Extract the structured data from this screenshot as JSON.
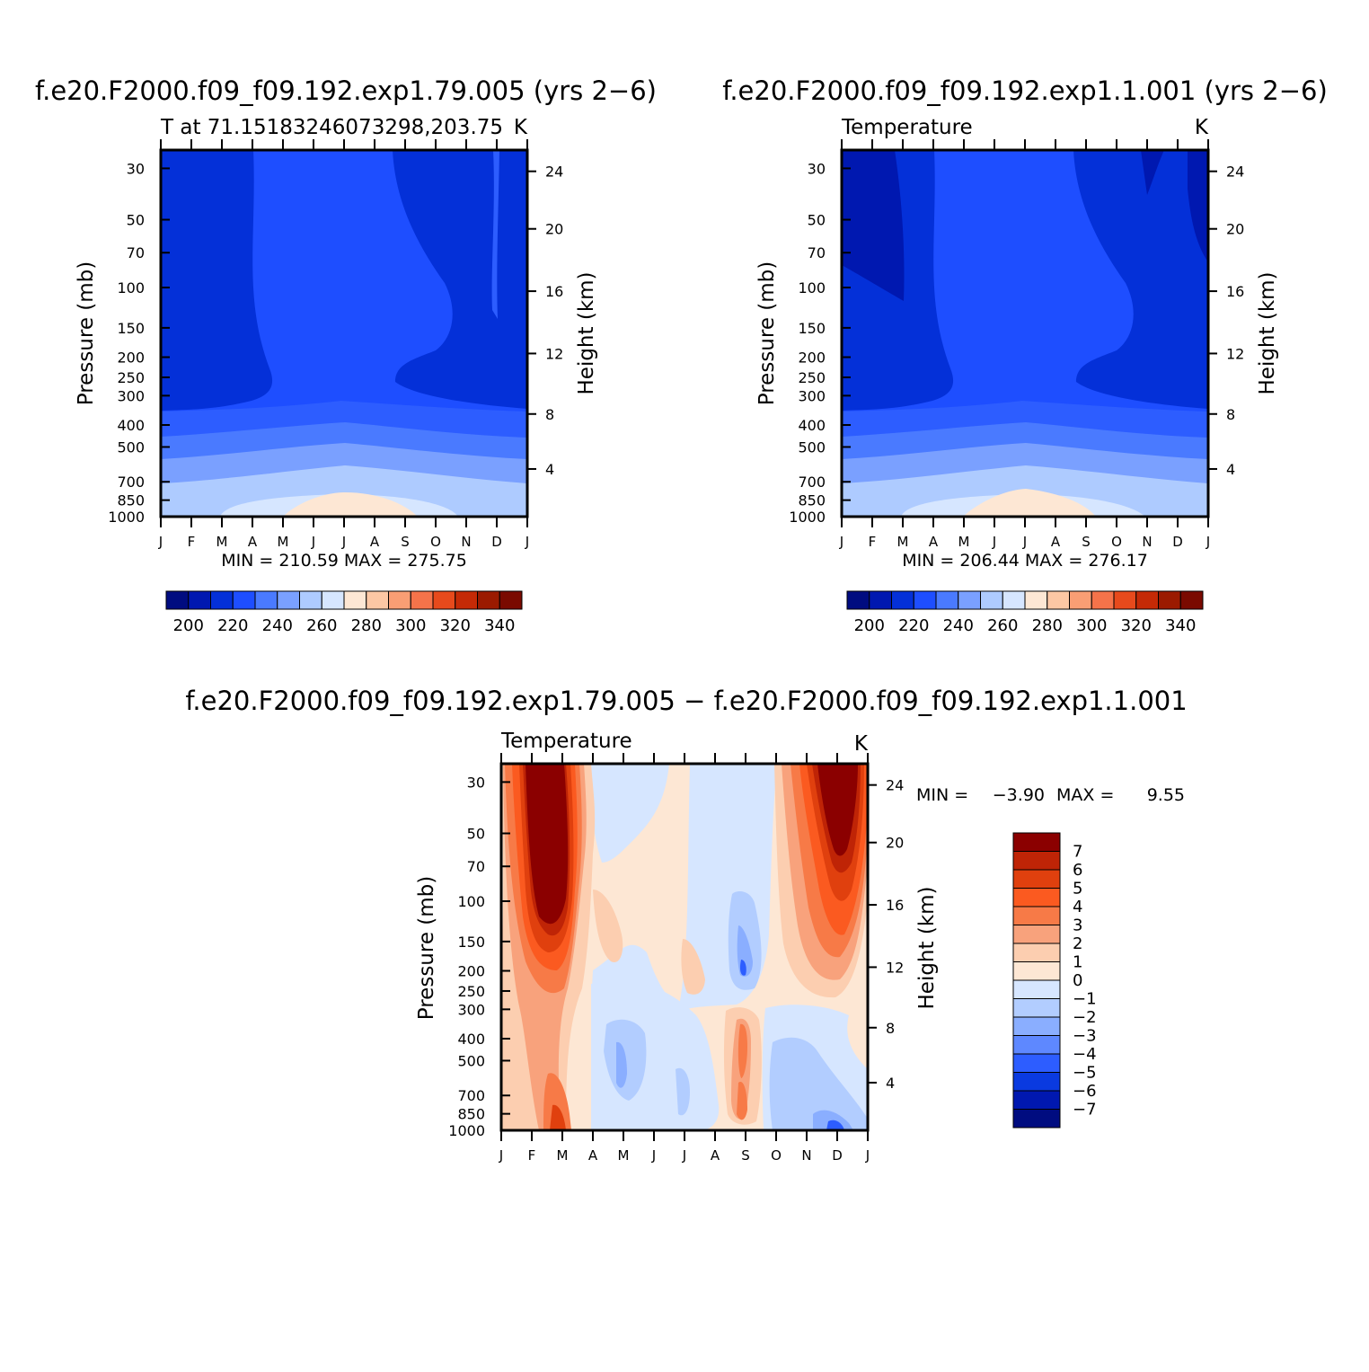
{
  "chart_data": [
    {
      "type": "contour",
      "title": "f.e20.F2000.f09_f09.192.exp1.79.005 (yrs 2−6)",
      "subtitle_left": "T at 71.15183246073298,203.75",
      "subtitle_right": "K",
      "xlabel": "",
      "ylabel": "Pressure (mb)",
      "ylabel_right": "Height (km)",
      "x_ticks": [
        "J",
        "F",
        "M",
        "A",
        "M",
        "J",
        "J",
        "A",
        "S",
        "O",
        "N",
        "D",
        "J"
      ],
      "y_ticks": [
        "30",
        "50",
        "70",
        "100",
        "150",
        "200",
        "250",
        "300",
        "400",
        "500",
        "700",
        "850",
        "1000"
      ],
      "y_ticks_right": [
        "24",
        "20",
        "16",
        "12",
        "8",
        "4"
      ],
      "stats_text": "MIN = 210.59  MAX = 275.75",
      "colorbar": {
        "orientation": "horizontal",
        "labels": [
          "200",
          "220",
          "240",
          "260",
          "280",
          "300",
          "320",
          "340"
        ],
        "colors": [
          "#000c80",
          "#0018b0",
          "#0430d8",
          "#1e4eff",
          "#4a7aff",
          "#7aa0ff",
          "#aecbff",
          "#d6e6ff",
          "#fde7d4",
          "#fcc7a4",
          "#f99e74",
          "#f5734a",
          "#e74a1c",
          "#c52a06",
          "#9b1a00",
          "#7a0a00"
        ]
      },
      "bands": [
        {
          "label": "210-220",
          "color": "#0430d8"
        },
        {
          "label": "220-230",
          "color": "#1e4eff"
        },
        {
          "label": "230-240",
          "color": "#2d5dff"
        },
        {
          "label": "240-250",
          "color": "#4a7aff"
        },
        {
          "label": "250-260",
          "color": "#7aa0ff"
        },
        {
          "label": "260-270",
          "color": "#aecbff"
        },
        {
          "label": "270-280",
          "color": "#d6e6ff"
        },
        {
          "label": "280-290",
          "color": "#fde7d4"
        }
      ]
    },
    {
      "type": "contour",
      "title": "f.e20.F2000.f09_f09.192.exp1.1.001 (yrs 2−6)",
      "subtitle_left": "Temperature",
      "subtitle_right": "K",
      "xlabel": "",
      "ylabel": "Pressure (mb)",
      "ylabel_right": "Height (km)",
      "x_ticks": [
        "J",
        "F",
        "M",
        "A",
        "M",
        "J",
        "J",
        "A",
        "S",
        "O",
        "N",
        "D",
        "J"
      ],
      "y_ticks": [
        "30",
        "50",
        "70",
        "100",
        "150",
        "200",
        "250",
        "300",
        "400",
        "500",
        "700",
        "850",
        "1000"
      ],
      "y_ticks_right": [
        "24",
        "20",
        "16",
        "12",
        "8",
        "4"
      ],
      "stats_text": "MIN = 206.44  MAX = 276.17",
      "colorbar": {
        "orientation": "horizontal",
        "labels": [
          "200",
          "220",
          "240",
          "260",
          "280",
          "300",
          "320",
          "340"
        ],
        "colors": [
          "#000c80",
          "#0018b0",
          "#0430d8",
          "#1e4eff",
          "#4a7aff",
          "#7aa0ff",
          "#aecbff",
          "#d6e6ff",
          "#fde7d4",
          "#fcc7a4",
          "#f99e74",
          "#f5734a",
          "#e74a1c",
          "#c52a06",
          "#9b1a00",
          "#7a0a00"
        ]
      }
    },
    {
      "type": "contour",
      "title": "f.e20.F2000.f09_f09.192.exp1.79.005 − f.e20.F2000.f09_f09.192.exp1.1.001",
      "subtitle_left": "Temperature",
      "subtitle_right": "K",
      "xlabel": "",
      "ylabel": "Pressure (mb)",
      "ylabel_right": "Height (km)",
      "x_ticks": [
        "J",
        "F",
        "M",
        "A",
        "M",
        "J",
        "J",
        "A",
        "S",
        "O",
        "N",
        "D",
        "J"
      ],
      "y_ticks": [
        "30",
        "50",
        "70",
        "100",
        "150",
        "200",
        "250",
        "300",
        "400",
        "500",
        "700",
        "850",
        "1000"
      ],
      "y_ticks_right": [
        "24",
        "20",
        "16",
        "12",
        "8",
        "4"
      ],
      "stats": {
        "min_label": "MIN =",
        "min_value": "−3.90",
        "max_label": "MAX =",
        "max_value": "9.55"
      },
      "colorbar": {
        "orientation": "vertical",
        "labels": [
          "7",
          "6",
          "5",
          "4",
          "3",
          "2",
          "1",
          "0",
          "−1",
          "−2",
          "−3",
          "−4",
          "−5",
          "−6",
          "−7"
        ],
        "colors": [
          "#8b0000",
          "#bf2406",
          "#e0400e",
          "#fb5a20",
          "#f77a47",
          "#f8a27c",
          "#fcceb0",
          "#fde7d4",
          "#d6e6ff",
          "#b2cdff",
          "#8aaeff",
          "#5e88ff",
          "#2d5dff",
          "#0a3ae0",
          "#0018b0",
          "#000c80"
        ]
      }
    }
  ]
}
